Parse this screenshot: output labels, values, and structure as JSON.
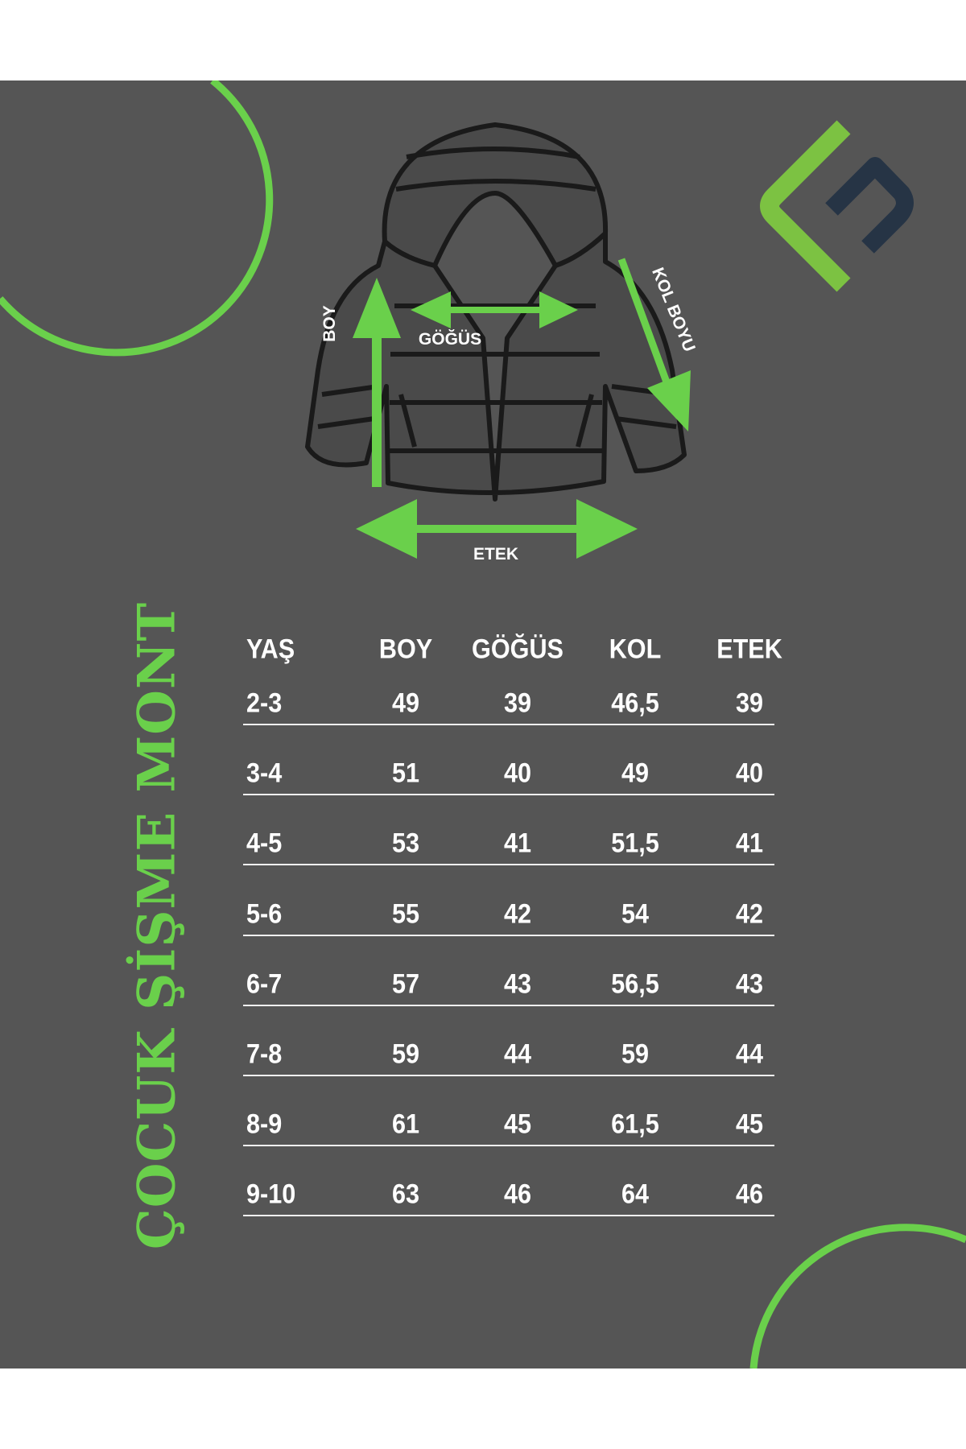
{
  "title": "ÇOCUK ŞİŞME MONT",
  "diagram_labels": {
    "boy": "BOY",
    "gogus": "GÖĞÜS",
    "kol_boyu": "KOL BOYU",
    "etek": "ETEK"
  },
  "colors": {
    "background": "#555555",
    "accent_green": "#6ad04b",
    "logo_navy": "#263445",
    "text": "#ffffff"
  },
  "table": {
    "headers": [
      "YAŞ",
      "BOY",
      "GÖĞÜS",
      "KOL",
      "ETEK"
    ],
    "rows": [
      [
        "2-3",
        "49",
        "39",
        "46,5",
        "39"
      ],
      [
        "3-4",
        "51",
        "40",
        "49",
        "40"
      ],
      [
        "4-5",
        "53",
        "41",
        "51,5",
        "41"
      ],
      [
        "5-6",
        "55",
        "42",
        "54",
        "42"
      ],
      [
        "6-7",
        "57",
        "43",
        "56,5",
        "43"
      ],
      [
        "7-8",
        "59",
        "44",
        "59",
        "44"
      ],
      [
        "8-9",
        "61",
        "45",
        "61,5",
        "45"
      ],
      [
        "9-10",
        "63",
        "46",
        "64",
        "46"
      ]
    ]
  }
}
